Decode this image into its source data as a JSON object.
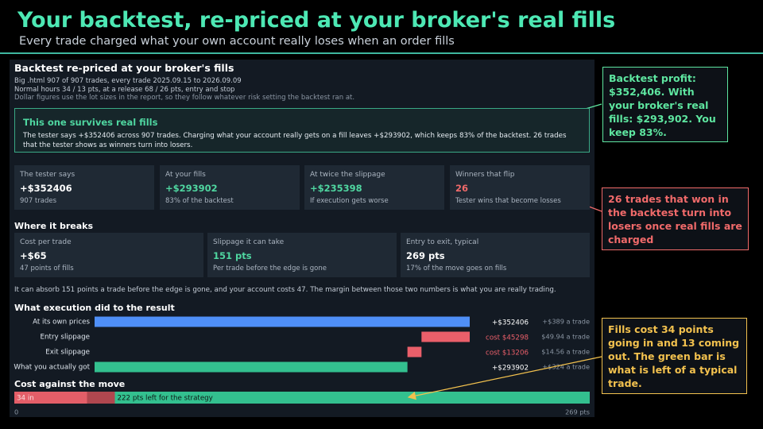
{
  "header": {
    "title": "Your backtest, re-priced at your broker's real fills",
    "subtitle": "Every trade charged what your own account really loses when an order fills"
  },
  "report": {
    "title": "Backtest re-priced at your broker's fills",
    "meta": [
      "Big .html   907 of 907 trades, every trade   2025.09.15 to 2026.09.09",
      "Normal hours 34 / 13 pts,  at a release 68 / 26 pts, entry and stop",
      "Dollar figures use the lot sizes in the report, so they follow whatever risk setting the backtest ran at."
    ],
    "verdict": {
      "title": "This one survives real fills",
      "text": "The tester says +$352406 across 907 trades. Charging what your account really gets on a fill leaves +$293902, which keeps 83% of the backtest. 26 trades that the tester shows as winners turn into losers."
    },
    "cards": [
      {
        "label": "The tester says",
        "value": "+$352406",
        "note": "907 trades",
        "color": "#ffffff"
      },
      {
        "label": "At your fills",
        "value": "+$293902",
        "note": "83% of the backtest",
        "color": "#4fd6a0"
      },
      {
        "label": "At twice the slippage",
        "value": "+$235398",
        "note": "If execution gets worse",
        "color": "#4fd6a0"
      },
      {
        "label": "Winners that flip",
        "value": "26",
        "note": "Tester wins that become losses",
        "color": "#f06a6a"
      }
    ],
    "breaks_heading": "Where it breaks",
    "break_cards": [
      {
        "label": "Cost per trade",
        "value": "+$65",
        "note": "47 points of fills",
        "color": "#ffffff"
      },
      {
        "label": "Slippage it can take",
        "value": "151 pts",
        "note": "Per trade before the edge is gone",
        "color": "#4fd6a0"
      },
      {
        "label": "Entry to exit, typical",
        "value": "269 pts",
        "note": "17% of the move goes on fills",
        "color": "#ffffff"
      }
    ],
    "breaks_text": "It can absorb 151 points a trade before the edge is gone, and your account costs 47. The margin between those two numbers is what you are really trading.",
    "waterfall": {
      "type": "waterfall",
      "heading": "What execution did to the result",
      "rows": [
        {
          "label": "At its own prices",
          "kind": "total",
          "value": 352406,
          "value_label": "+$352406",
          "per_trade": "+$389 a trade",
          "color": "#4f8ff7"
        },
        {
          "label": "Entry slippage",
          "kind": "step",
          "value": -45298,
          "value_label": "cost $45298",
          "per_trade": "$49.94 a trade",
          "color": "#ea5f6a"
        },
        {
          "label": "Exit slippage",
          "kind": "step",
          "value": -13206,
          "value_label": "cost $13206",
          "per_trade": "$14.56 a trade",
          "color": "#ea5f6a"
        },
        {
          "label": "What you actually got",
          "kind": "total",
          "value": 293902,
          "value_label": "+$293902",
          "per_trade": "+$324 a trade",
          "color": "#33c08f"
        }
      ]
    },
    "move": {
      "type": "stacked-bar",
      "heading": "Cost against the move",
      "segments": [
        {
          "value": 34,
          "label": "34 in",
          "color": "#e35e68"
        },
        {
          "value": 13,
          "color": "#b0474f"
        },
        {
          "value": 222,
          "label": "222 pts left for the strategy",
          "color": "#33c08f"
        }
      ],
      "xlim": [
        0,
        269
      ],
      "xticks": [
        0,
        {
          "value": 269,
          "label": "269 pts"
        }
      ]
    }
  },
  "annotations": [
    {
      "text": "Backtest profit: $352,406. With your broker's real fills: $293,902. You keep 83%.",
      "color": "#5ee6a0"
    },
    {
      "text": "26 trades that won in the backtest turn into losers once real fills are charged",
      "color": "#f06a6a"
    },
    {
      "text": "Fills cost 34 points going in and 13 coming out. The green bar is what is left of a typical trade.",
      "color": "#f2c14e"
    }
  ]
}
